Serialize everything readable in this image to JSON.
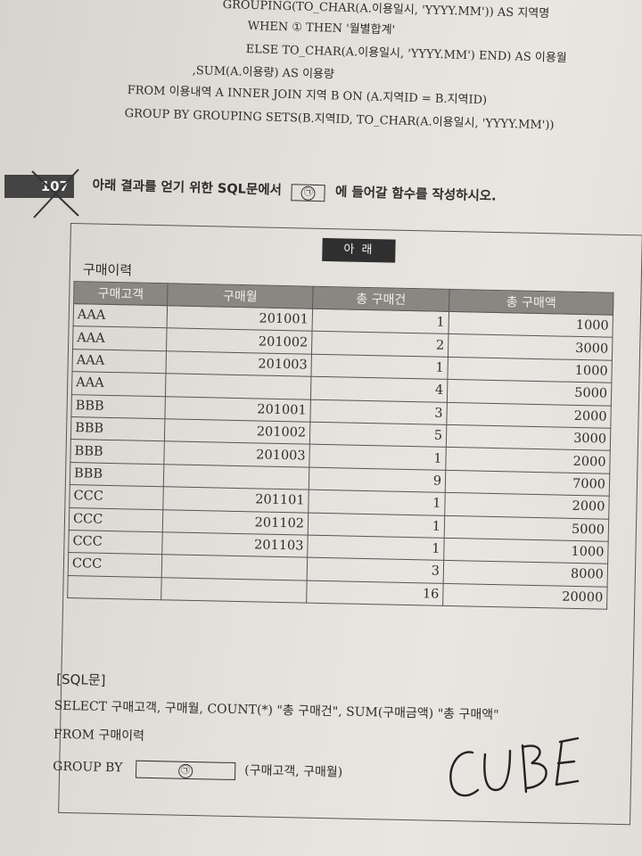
{
  "previous_code": {
    "line1": "GROUPING(TO_CHAR(A.이용일시, 'YYYY.MM')) AS 지역명",
    "line2": "WHEN ① THEN '월별합계'",
    "line3": "ELSE TO_CHAR(A.이용일시, 'YYYY.MM') END) AS 이용월",
    "line4": ",SUM(A.이용량) AS 이용량",
    "line5": "FROM    이용내역 A INNER JOIN 지역 B ON (A.지역ID = B.지역ID)",
    "line6": "GROUP BY GROUPING SETS(B.지역ID, TO_CHAR(A.이용일시, 'YYYY.MM'))"
  },
  "question": {
    "number": "107",
    "text_before": "아래 결과를 얻기 위한 SQL문에서",
    "blank_symbol": "㉠",
    "text_after": "에 들어갈 함수를 작성하시오."
  },
  "box": {
    "title": "아 래",
    "table_label": "구매이력",
    "columns": [
      "구매고객",
      "구매월",
      "총 구매건",
      "총 구매액"
    ],
    "rows": [
      [
        "AAA",
        "201001",
        "1",
        "1000"
      ],
      [
        "AAA",
        "201002",
        "2",
        "3000"
      ],
      [
        "AAA",
        "201003",
        "1",
        "1000"
      ],
      [
        "AAA",
        "",
        "4",
        "5000"
      ],
      [
        "BBB",
        "201001",
        "3",
        "2000"
      ],
      [
        "BBB",
        "201002",
        "5",
        "3000"
      ],
      [
        "BBB",
        "201003",
        "1",
        "2000"
      ],
      [
        "BBB",
        "",
        "9",
        "7000"
      ],
      [
        "CCC",
        "201101",
        "1",
        "2000"
      ],
      [
        "CCC",
        "201102",
        "1",
        "5000"
      ],
      [
        "CCC",
        "201103",
        "1",
        "1000"
      ],
      [
        "CCC",
        "",
        "3",
        "8000"
      ],
      [
        "",
        "",
        "16",
        "20000"
      ]
    ],
    "sql_heading": "[SQL문]",
    "sql_line1": "SELECT 구매고객, 구매월, COUNT(*) \"총 구매건\", SUM(구매금액) \"총 구매액\"",
    "sql_line2": "FROM 구매이력",
    "sql_group_by": "GROUP BY",
    "sql_blank": "㉠",
    "sql_group_cols": "(구매고객, 구매월)"
  },
  "handwritten_answer": "CUBE"
}
